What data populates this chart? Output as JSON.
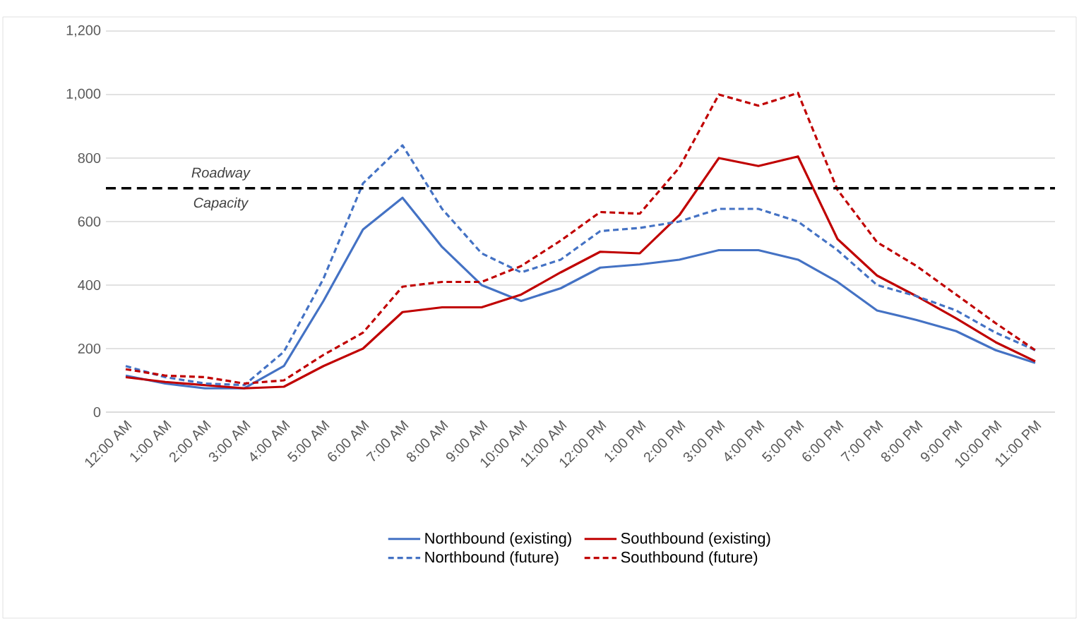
{
  "chart_data": {
    "type": "line",
    "categories": [
      "12:00 AM",
      "1:00 AM",
      "2:00 AM",
      "3:00 AM",
      "4:00 AM",
      "5:00 AM",
      "6:00 AM",
      "7:00 AM",
      "8:00 AM",
      "9:00 AM",
      "10:00 AM",
      "11:00 AM",
      "12:00 PM",
      "1:00 PM",
      "2:00 PM",
      "3:00 PM",
      "4:00 PM",
      "5:00 PM",
      "6:00 PM",
      "7:00 PM",
      "8:00 PM",
      "9:00 PM",
      "10:00 PM",
      "11:00 PM"
    ],
    "series": [
      {
        "name": "Northbound (existing)",
        "color": "#4472c4",
        "line_style": "solid",
        "values": [
          115,
          90,
          75,
          75,
          145,
          350,
          575,
          675,
          520,
          400,
          350,
          390,
          455,
          465,
          480,
          510,
          510,
          480,
          410,
          320,
          290,
          255,
          195,
          155
        ]
      },
      {
        "name": "Southbound (existing)",
        "color": "#c00000",
        "line_style": "solid",
        "values": [
          110,
          95,
          85,
          75,
          80,
          145,
          200,
          315,
          330,
          330,
          370,
          440,
          505,
          500,
          620,
          800,
          775,
          805,
          545,
          430,
          365,
          295,
          220,
          160
        ]
      },
      {
        "name": "Northbound (future)",
        "color": "#4472c4",
        "line_style": "dashed",
        "values": [
          145,
          110,
          90,
          85,
          190,
          420,
          720,
          840,
          640,
          500,
          440,
          480,
          570,
          580,
          600,
          640,
          640,
          600,
          510,
          400,
          365,
          320,
          250,
          195
        ]
      },
      {
        "name": "Southbound (future)",
        "color": "#c00000",
        "line_style": "dashed",
        "values": [
          135,
          115,
          110,
          90,
          100,
          180,
          250,
          395,
          410,
          410,
          460,
          540,
          630,
          625,
          770,
          1000,
          965,
          1005,
          700,
          535,
          460,
          370,
          280,
          195
        ]
      }
    ],
    "ylim": [
      0,
      1200
    ],
    "yticks": [
      0,
      {
        "value": 200,
        "label": "200"
      },
      {
        "value": 400,
        "label": "400"
      },
      {
        "value": 600,
        "label": "600"
      },
      {
        "value": 800,
        "label": "800"
      },
      {
        "value": 1000,
        "label": "1,000"
      },
      {
        "value": 1200,
        "label": "1,200"
      }
    ],
    "ref_lines": [
      {
        "axis": "y",
        "value": 705,
        "color": "#000000",
        "line_style": "dashed"
      }
    ],
    "annotations": [
      "Roadway",
      "Capacity"
    ],
    "grid": "y",
    "legend": "bottom",
    "marker": "none"
  }
}
